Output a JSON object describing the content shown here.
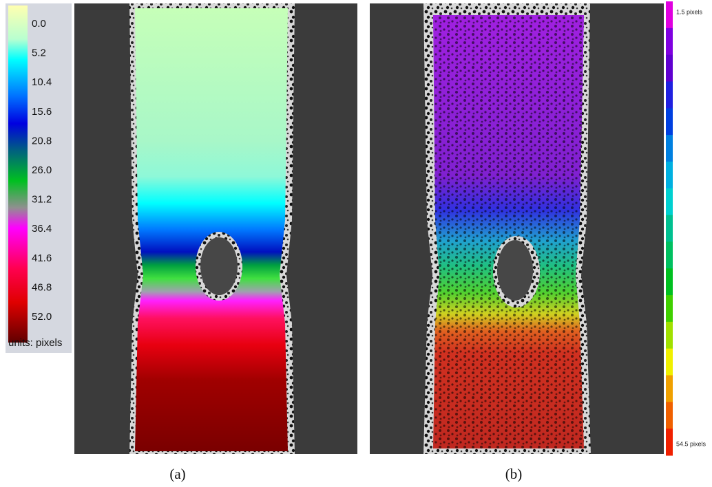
{
  "panel_a": {
    "colorbar": {
      "labels": [
        "0.0",
        "5.2",
        "10.4",
        "15.6",
        "20.8",
        "26.0",
        "31.2",
        "36.4",
        "41.6",
        "46.8",
        "52.0"
      ],
      "units": "units: pixels"
    },
    "caption": "(a)"
  },
  "panel_b": {
    "colorbar": {
      "top_label": "1.5 pixels",
      "bottom_label": "54.5 pixels"
    },
    "caption": "(b)"
  }
}
